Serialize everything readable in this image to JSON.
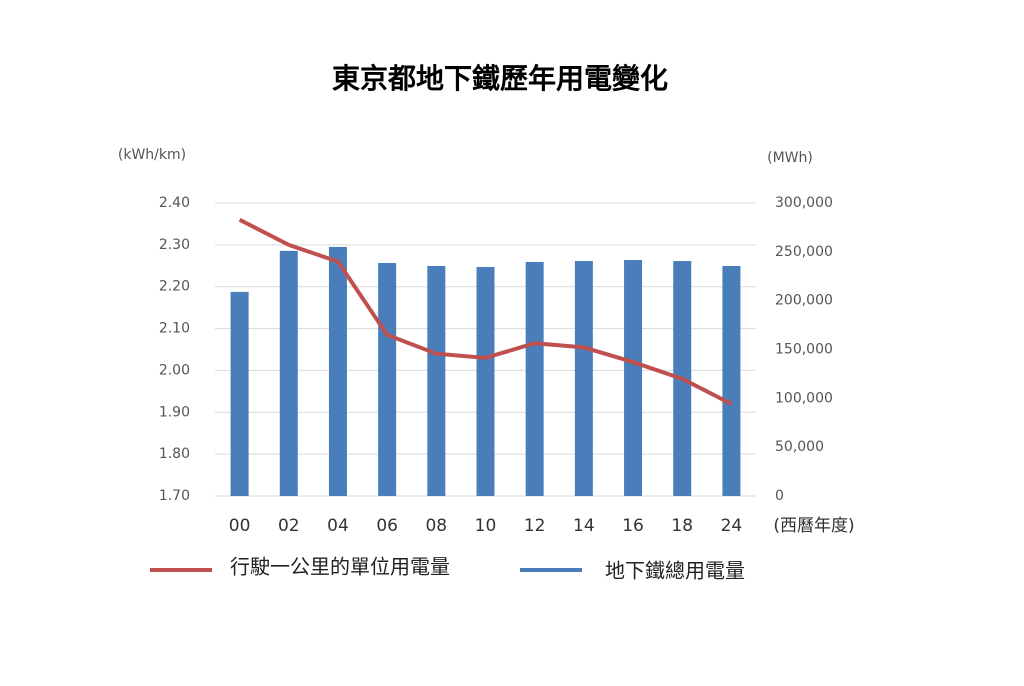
{
  "chart_data": {
    "type": "bar-line",
    "title": "東京都地下鐵歷年用電變化",
    "y_label": "(kWh/km)",
    "y2_label": "(MWh)",
    "x_label": "(西曆年度)",
    "categories": [
      "00",
      "02",
      "04",
      "06",
      "08",
      "10",
      "12",
      "14",
      "16",
      "18",
      "24"
    ],
    "series": [
      {
        "name": "行駛一公里的單位用電量",
        "type": "line",
        "axis": "y",
        "color": "#c0504d",
        "values": [
          2.36,
          2.3,
          2.26,
          2.085,
          2.04,
          2.03,
          2.065,
          2.055,
          2.02,
          1.98,
          1.92
        ]
      },
      {
        "name": "地下鐵總用電量",
        "type": "bar",
        "axis": "y2",
        "color": "#4a7ebb",
        "values": [
          209000,
          251000,
          255000,
          238600,
          235500,
          234500,
          239600,
          240600,
          241600,
          240600,
          235500
        ]
      }
    ],
    "ylim": [
      1.7,
      2.4
    ],
    "yticks": [
      {
        "value": 1.7,
        "label": "1.70"
      },
      {
        "value": 1.8,
        "label": "1.80"
      },
      {
        "value": 1.9,
        "label": "1.90"
      },
      {
        "value": 2.0,
        "label": "2.00"
      },
      {
        "value": 2.1,
        "label": "2.10"
      },
      {
        "value": 2.2,
        "label": "2.20"
      },
      {
        "value": 2.3,
        "label": "2.30"
      },
      {
        "value": 2.4,
        "label": "2.40"
      }
    ],
    "y2lim": [
      0,
      300000
    ],
    "y2ticks": [
      0,
      {
        "value": 50000,
        "label": "50,000"
      },
      {
        "value": 100000,
        "label": "100,000"
      },
      {
        "value": 150000,
        "label": "150,000"
      },
      {
        "value": 200000,
        "label": "200,000"
      },
      {
        "value": 250000,
        "label": "250,000"
      },
      {
        "value": 300000,
        "label": "300,000"
      }
    ],
    "grid": true
  }
}
